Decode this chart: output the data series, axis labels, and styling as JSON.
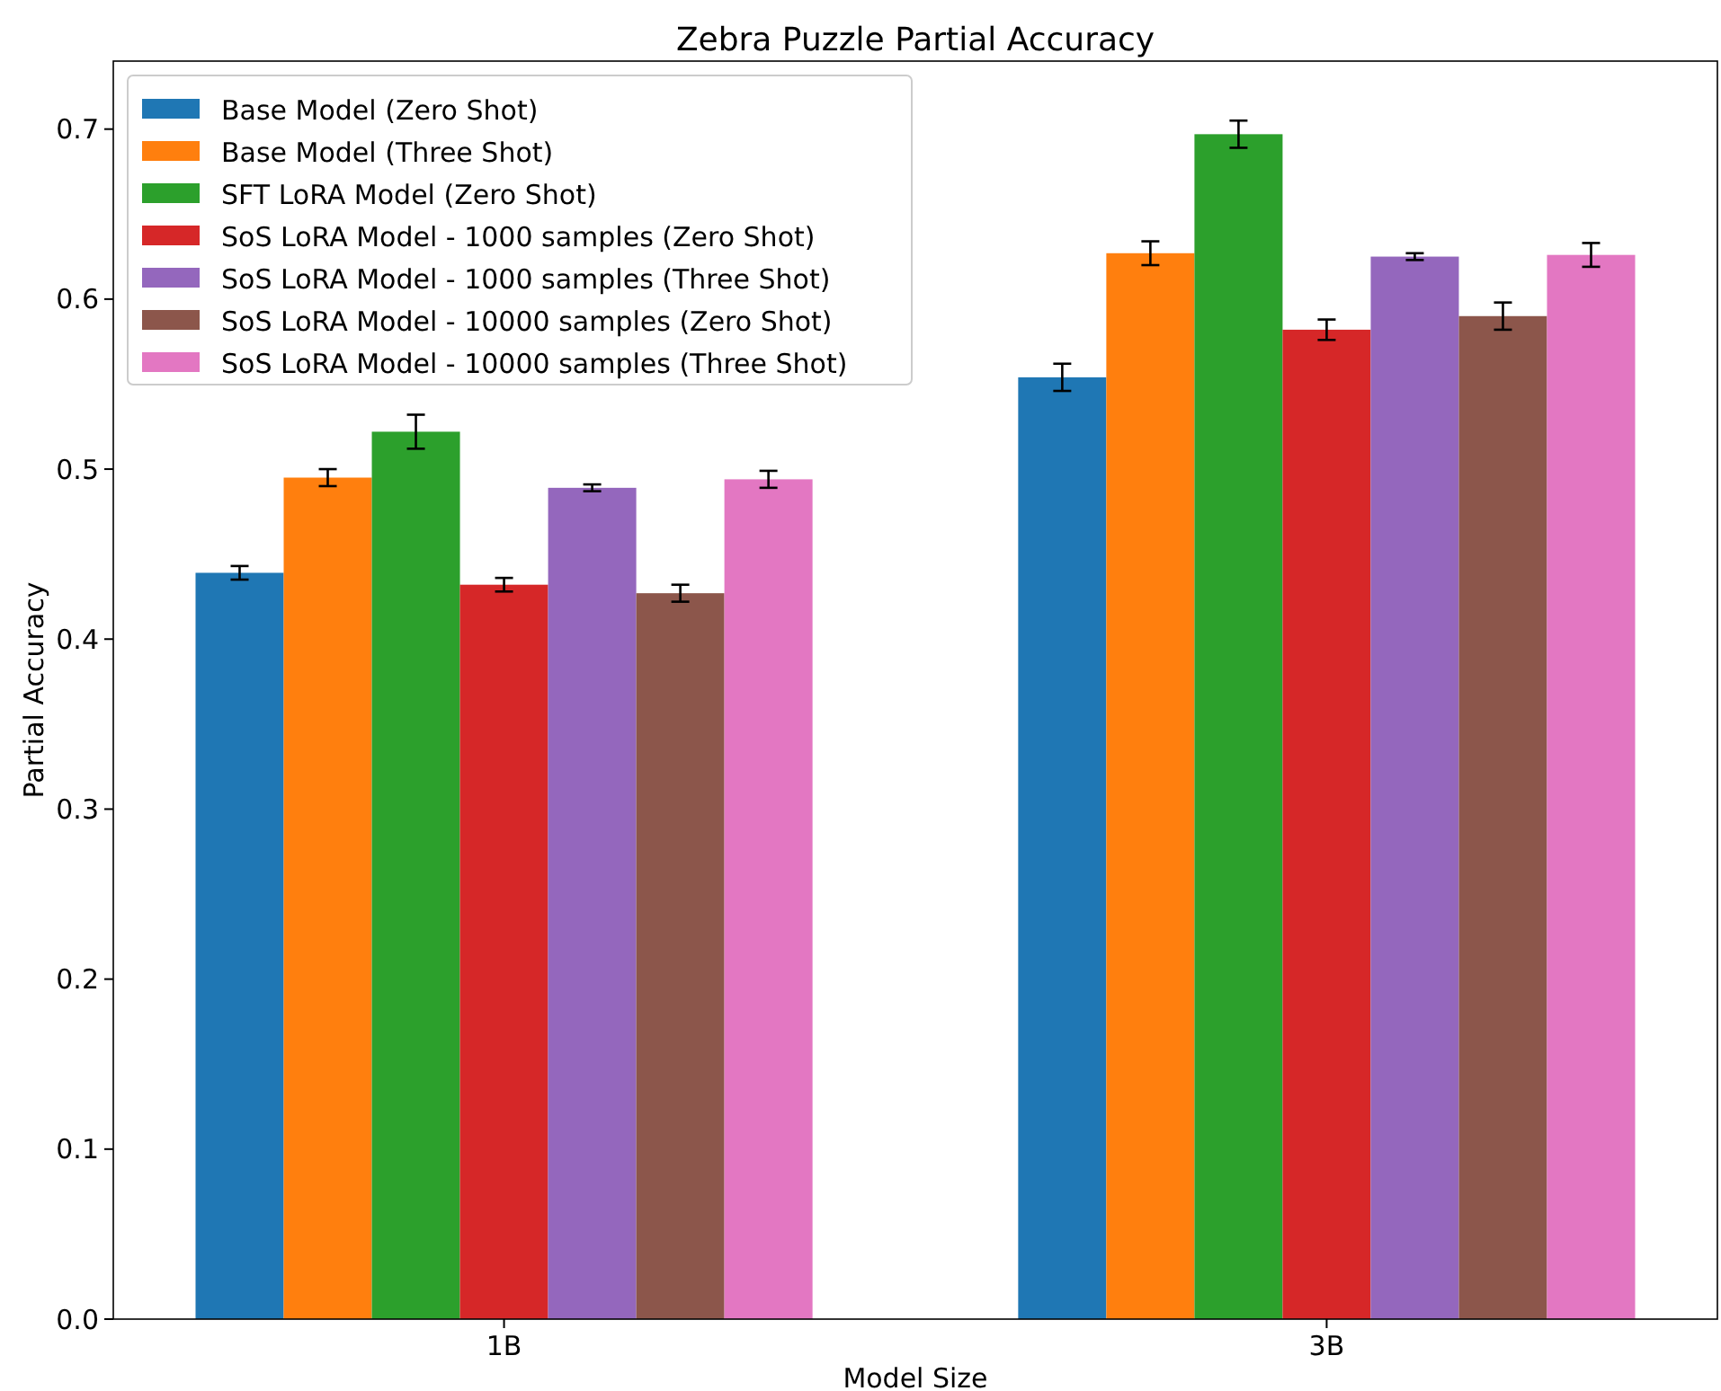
{
  "chart_data": {
    "type": "bar",
    "title": "Zebra Puzzle Partial Accuracy",
    "xlabel": "Model Size",
    "ylabel": "Partial Accuracy",
    "categories": [
      "1B",
      "3B"
    ],
    "series": [
      {
        "name": "Base Model (Zero Shot)",
        "color": "#1f77b4",
        "values": [
          0.439,
          0.554
        ],
        "errors": [
          0.004,
          0.008
        ]
      },
      {
        "name": "Base Model (Three Shot)",
        "color": "#ff7f0e",
        "values": [
          0.495,
          0.627
        ],
        "errors": [
          0.005,
          0.007
        ]
      },
      {
        "name": "SFT LoRA Model (Zero Shot)",
        "color": "#2ca02c",
        "values": [
          0.522,
          0.697
        ],
        "errors": [
          0.01,
          0.008
        ]
      },
      {
        "name": "SoS LoRA Model - 1000 samples (Zero Shot)",
        "color": "#d62728",
        "values": [
          0.432,
          0.582
        ],
        "errors": [
          0.004,
          0.006
        ]
      },
      {
        "name": "SoS LoRA Model - 1000 samples (Three Shot)",
        "color": "#9467bd",
        "values": [
          0.489,
          0.625
        ],
        "errors": [
          0.002,
          0.002
        ]
      },
      {
        "name": "SoS LoRA Model - 10000 samples (Zero Shot)",
        "color": "#8c564b",
        "values": [
          0.427,
          0.59
        ],
        "errors": [
          0.005,
          0.008
        ]
      },
      {
        "name": "SoS LoRA Model - 10000 samples (Three Shot)",
        "color": "#e377c2",
        "values": [
          0.494,
          0.626
        ],
        "errors": [
          0.005,
          0.007
        ]
      }
    ],
    "ylim": [
      0,
      0.74
    ],
    "yticks": [
      {
        "value": 0,
        "label": "0.0"
      },
      0.1,
      0.2,
      0.3,
      0.4,
      0.5,
      0.6,
      0.7
    ],
    "grid": false,
    "legend": "top left"
  }
}
